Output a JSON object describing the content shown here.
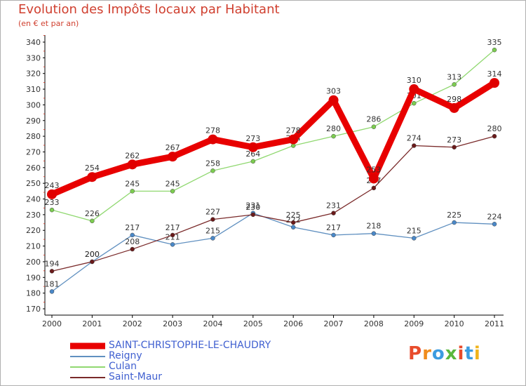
{
  "chart_data": {
    "type": "line",
    "title": "Evolution des Impôts locaux par Habitant",
    "subtitle": "(en € et par an)",
    "x": [
      "2000",
      "2001",
      "2002",
      "2003",
      "2004",
      "2005",
      "2006",
      "2007",
      "2008",
      "2009",
      "2010",
      "2011"
    ],
    "ylim": [
      170,
      340
    ],
    "yticks": [
      170,
      180,
      190,
      200,
      210,
      220,
      230,
      240,
      250,
      260,
      270,
      280,
      290,
      300,
      310,
      320,
      330,
      340
    ],
    "grid": false,
    "series": [
      {
        "name": "Reigny",
        "color": "#6090c0",
        "marker": "#4a88c8",
        "values": [
          181,
          200,
          217,
          211,
          215,
          231,
          222,
          217,
          218,
          215,
          225,
          224
        ]
      },
      {
        "name": "Culan",
        "color": "#90d870",
        "marker": "#7ccc50",
        "values": [
          233,
          226,
          245,
          245,
          258,
          264,
          274,
          280,
          286,
          301,
          313,
          335
        ]
      },
      {
        "name": "Saint-Maur",
        "color": "#7a2a2a",
        "marker": "#6a1a1a",
        "values": [
          194,
          200,
          208,
          217,
          227,
          230,
          225,
          231,
          247,
          274,
          273,
          280
        ]
      },
      {
        "name": "SAINT-CHRISTOPHE-LE-CHAUDRY",
        "color": "#e80000",
        "marker": "#e00000",
        "values": [
          243,
          254,
          262,
          267,
          278,
          273,
          278,
          303,
          253,
          310,
          298,
          314
        ]
      }
    ],
    "legend_position": "bottom"
  },
  "legend": [
    {
      "label": "SAINT-CHRISTOPHE-LE-CHAUDRY",
      "color": "#e80000",
      "thickness": 9
    },
    {
      "label": "Reigny",
      "color": "#6090c0",
      "thickness": 2
    },
    {
      "label": "Culan",
      "color": "#90d870",
      "thickness": 2
    },
    {
      "label": "Saint-Maur",
      "color": "#7a2a2a",
      "thickness": 2
    }
  ],
  "logo": {
    "letters": [
      "P",
      "r",
      "o",
      "x",
      "i",
      "t",
      "i"
    ],
    "colors": [
      "#e84c2c",
      "#f08c1c",
      "#3c9ce0",
      "#5ab83c",
      "#e84c2c",
      "#3c9ce0",
      "#f0b41c"
    ]
  }
}
